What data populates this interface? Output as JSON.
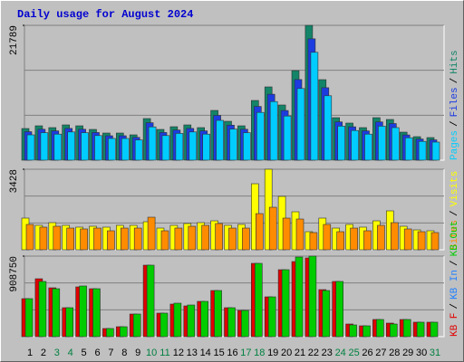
{
  "chart_data": {
    "type": "bar",
    "title": "Daily usage for August 2024",
    "categories": [
      "1",
      "2",
      "3",
      "4",
      "5",
      "6",
      "7",
      "8",
      "9",
      "10",
      "11",
      "12",
      "13",
      "14",
      "15",
      "16",
      "17",
      "18",
      "19",
      "20",
      "21",
      "22",
      "23",
      "24",
      "25",
      "26",
      "27",
      "28",
      "29",
      "30",
      "31"
    ],
    "category_colors": [
      "#000000",
      "#000000",
      "#008040",
      "#008040",
      "#000000",
      "#000000",
      "#000000",
      "#000000",
      "#000000",
      "#008040",
      "#008040",
      "#000000",
      "#000000",
      "#000000",
      "#000000",
      "#000000",
      "#008040",
      "#008040",
      "#000000",
      "#000000",
      "#000000",
      "#000000",
      "#000000",
      "#008040",
      "#008040",
      "#000000",
      "#000000",
      "#000000",
      "#000000",
      "#000000",
      "#008040"
    ],
    "legend_separator": "/",
    "panels": [
      {
        "ylim": [
          0,
          21789
        ],
        "yticks": [
          21789
        ],
        "series": [
          {
            "name": "Pages",
            "color": "#00ccff",
            "values": [
              4094,
              4445,
              4210,
              4562,
              4445,
              3977,
              3509,
              3509,
              3275,
              5381,
              3977,
              4328,
              4562,
              4210,
              6434,
              5030,
              4445,
              7720,
              9474,
              7135,
              11580,
              17431,
              10410,
              5498,
              4796,
              4210,
              5498,
              5264,
              3626,
              3041,
              2924
            ]
          },
          {
            "name": "Files",
            "color": "#1c3ce0",
            "values": [
              4605,
              5000,
              4737,
              5132,
              5000,
              4474,
              3947,
              3947,
              3685,
              6053,
              4474,
              4869,
              5132,
              4737,
              7238,
              5658,
              5000,
              8685,
              10659,
              8027,
              13028,
              19610,
              11712,
              6185,
              5396,
              4737,
              6185,
              5922,
              4079,
              3421,
              3290
            ]
          },
          {
            "name": "Hits",
            "color": "#138468",
            "values": [
              5117,
              5556,
              5263,
              5702,
              5556,
              4971,
              4386,
              4386,
              4094,
              6726,
              4971,
              5410,
              5702,
              5263,
              8042,
              6287,
              5556,
              9650,
              11843,
              8919,
              14475,
              21789,
              13013,
              6872,
              5995,
              5263,
              6872,
              6580,
              4532,
              3801,
              3655
            ]
          }
        ]
      },
      {
        "ylim": [
          0,
          3428
        ],
        "yticks": [
          3428
        ],
        "series": [
          {
            "name": "Sites",
            "color": "#ff8c00",
            "values": [
              1078,
              963,
              1001,
              924,
              886,
              924,
              809,
              924,
              924,
              1386,
              809,
              924,
              1001,
              1040,
              1117,
              924,
              924,
              1540,
              1810,
              1348,
              1309,
              732,
              1078,
              770,
              924,
              809,
              1040,
              1155,
              886,
              770,
              732
            ]
          },
          {
            "name": "Visits",
            "color": "#ffff00",
            "values": [
              1348,
              1040,
              1155,
              1040,
              963,
              1001,
              963,
              1040,
              1040,
              1194,
              924,
              1040,
              1117,
              1155,
              1232,
              1040,
              1078,
              2811,
              3428,
              2272,
              1617,
              770,
              1348,
              924,
              1078,
              963,
              1232,
              1656,
              1001,
              847,
              809
            ]
          }
        ]
      },
      {
        "ylim": [
          0,
          908750
        ],
        "yticks": [
          908750
        ],
        "series": [
          {
            "name": "KB F",
            "color": "#e00000",
            "values": [
              428862,
              653504,
              551394,
              326752,
              561605,
              541183,
              91899,
              112321,
              255275,
              806669,
              265486,
              367596,
              347174,
              398229,
              520761,
              326752,
              296119,
              827091,
              449284,
              755614,
              847513,
              888357,
              530972,
              622871,
              142954,
              122532,
              194009,
              153165,
              194009,
              163376,
              163376
            ]
          },
          {
            "name": "KB In",
            "color": "#2080ff",
            "values": [
              null,
              null,
              null,
              null,
              null,
              null,
              null,
              null,
              null,
              null,
              null,
              null,
              null,
              null,
              null,
              null,
              null,
              null,
              null,
              null,
              null,
              null,
              null,
              null,
              null,
              null,
              null,
              null,
              null,
              null,
              null
            ]
          },
          {
            "name": "KB Out",
            "color": "#00cc00",
            "values": [
              428862,
              622871,
              541183,
              326752,
              571816,
              541183,
              91899,
              112321,
              255275,
              806669,
              265486,
              377807,
              357385,
              398229,
              520761,
              326752,
              296119,
              827091,
              449284,
              755614,
              898568,
              908750,
              520761,
              622871,
              132743,
              122532,
              194009,
              142954,
              194009,
              163376,
              163376
            ]
          }
        ]
      }
    ]
  }
}
